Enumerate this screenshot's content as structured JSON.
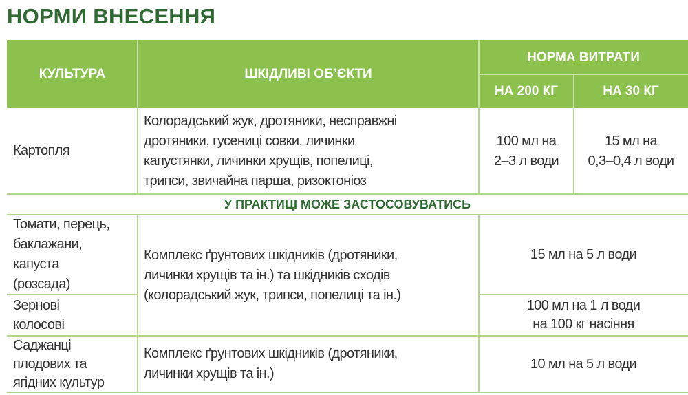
{
  "title": "НОРМИ ВНЕСЕННЯ",
  "header": {
    "culture": "КУЛЬТУРА",
    "pests": "ШКІДЛИВІ ОБ’ЄКТИ",
    "norm": "НОРМА ВИТРАТИ",
    "norm_200": "НА 200 КГ",
    "norm_30": "НА 30 КГ"
  },
  "colors": {
    "header_bg": "#8bc14c",
    "title": "#2f6a32",
    "border": "#b3d68b"
  },
  "rows": {
    "potato": {
      "culture": "Картопля",
      "pests": [
        "Колорадський жук, дротяники, несправжні",
        "дротяники, гусениці совки, личинки",
        "капустянки, личинки хрущів, попелиці,",
        "трипси, звичайна парша, ризоктоніоз"
      ],
      "norm_200": [
        "100 мл на",
        "2–3 л води"
      ],
      "norm_30": [
        "15 мл на",
        "0,3–0,4 л води"
      ]
    },
    "practice": "У ПРАКТИЦІ МОЖЕ ЗАСТОСОВУВАТИСЬ",
    "tomato": {
      "culture": [
        "Томати, перець,",
        "баклажани,",
        "капуста",
        "(розсада)"
      ],
      "norm": "15 мл на 5 л води"
    },
    "shared_pests": [
      "Комплекс ґрунтових шкідників (дротяники,",
      "личинки хрущів та ін.) та шкідників сходів",
      "(колорадський жук, трипси, попелиці та ін.)"
    ],
    "grain": {
      "culture": [
        "Зернові",
        "колосові"
      ],
      "norm": [
        "100 мл на 1 л води",
        "на 100 кг насіння"
      ]
    },
    "saplings": {
      "culture": [
        "Саджанці",
        "плодових та",
        "ягідних культур"
      ],
      "pests": [
        "Комплекс ґрунтових шкідників (дротяники,",
        "личинки хрущів та ін.)"
      ],
      "norm": "10 мл на 5 л води"
    }
  }
}
